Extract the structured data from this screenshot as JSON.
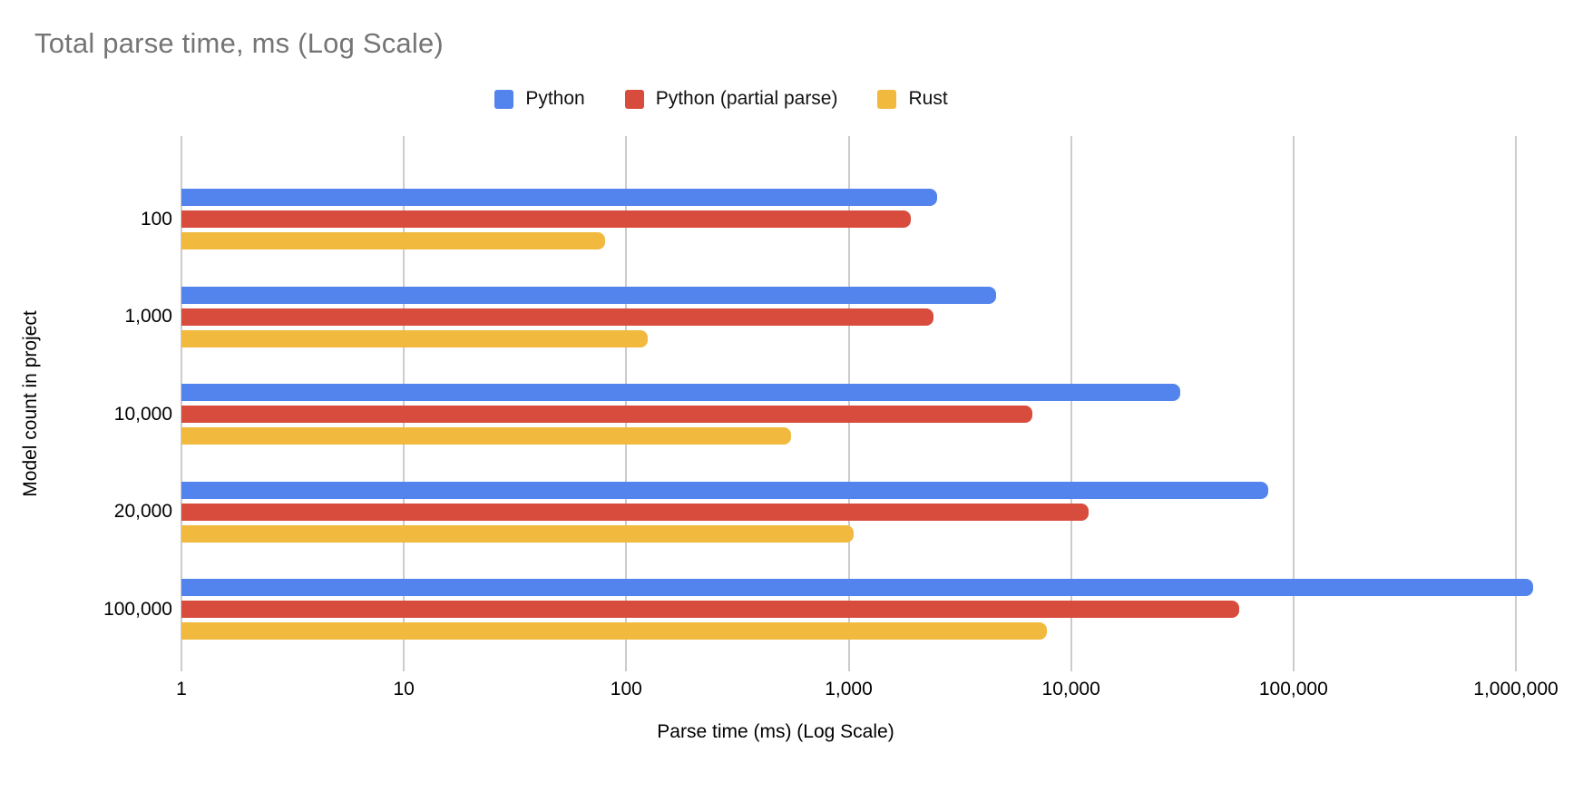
{
  "title": "Total parse time, ms (Log Scale)",
  "colors": {
    "title_gray": "#757575",
    "gridline": "#cccccc",
    "python_blue": "#5383EC",
    "python_partial_red": "#D74C3D",
    "rust_yellow": "#F1B93E"
  },
  "chart_data": {
    "type": "bar",
    "orientation": "horizontal",
    "log_scale": true,
    "title": "Total parse time, ms (Log Scale)",
    "xlabel": "Parse time (ms) (Log Scale)",
    "ylabel": "Model count in project",
    "categories": [
      "100",
      "1,000",
      "10,000",
      "20,000",
      "100,000"
    ],
    "series": [
      {
        "name": "Python",
        "color": "#5383EC",
        "values": [
          2500,
          4600,
          31000,
          77000,
          1200000
        ]
      },
      {
        "name": "Python (partial parse)",
        "color": "#D74C3D",
        "values": [
          1900,
          2400,
          6700,
          12000,
          57000
        ]
      },
      {
        "name": "Rust",
        "color": "#F1B93E",
        "values": [
          80,
          125,
          550,
          1050,
          7800
        ]
      }
    ],
    "x_ticks": [
      "1",
      "10",
      "100",
      "1,000",
      "10,000",
      "100,000",
      "1,000,000"
    ],
    "xlim": [
      1,
      1000000
    ],
    "grid": true,
    "legend_position": "top"
  }
}
